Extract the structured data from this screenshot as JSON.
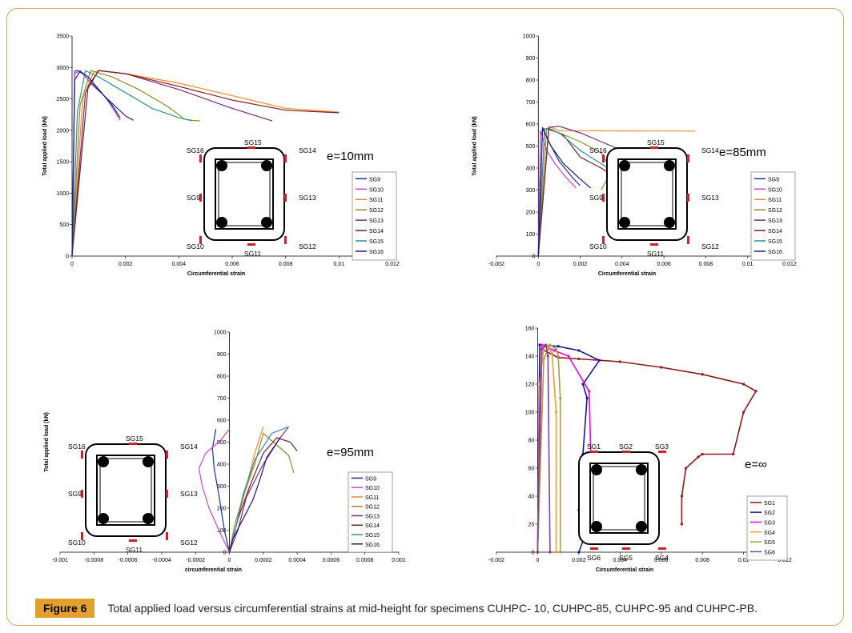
{
  "figure": {
    "label": "Figure 6",
    "caption": "Total applied load versus circumferential strains at mid-height for specimens CUHPC- 10, CUHPC-85, CUHPC-95 and CUHPC-PB."
  },
  "chart_data": [
    {
      "type": "line",
      "id": "CUHPC-10",
      "annotation": "e=10mm",
      "xlabel": "Circumferential strain",
      "ylabel": "Total applied load (kN)",
      "xlim": [
        0,
        0.012
      ],
      "ylim": [
        0,
        3500
      ],
      "x_ticks": [
        "0",
        "0.002",
        "0.004",
        "0.006",
        "0.008",
        "0.01",
        "0.012"
      ],
      "y_ticks": [
        "0",
        "500",
        "1000",
        "1500",
        "2000",
        "2500",
        "3000",
        "3500"
      ],
      "gauge_labels": [
        "SG15",
        "SG14",
        "SG16",
        "SG9",
        "SG13",
        "SG10",
        "SG11",
        "SG12"
      ],
      "series": [
        {
          "name": "SG9",
          "color": "#1f2f8f",
          "x": [
            0,
            0.0001,
            0.0002,
            0.0004,
            0.0007,
            0.0012,
            0.0017,
            0.002,
            0.0023
          ],
          "y": [
            0,
            2940,
            2950,
            2900,
            2750,
            2550,
            2350,
            2230,
            2160
          ]
        },
        {
          "name": "SG10",
          "color": "#cc44cc",
          "x": [
            0,
            0.0001,
            0.0003,
            0.0006,
            0.001,
            0.0013,
            0.0016,
            0.0018
          ],
          "y": [
            0,
            2900,
            2950,
            2800,
            2650,
            2500,
            2300,
            2160
          ]
        },
        {
          "name": "SG11",
          "color": "#f08c2c",
          "x": [
            0,
            0.0004,
            0.0008,
            0.001,
            0.002,
            0.004,
            0.006,
            0.008,
            0.01
          ],
          "y": [
            0,
            2500,
            2920,
            2950,
            2900,
            2750,
            2550,
            2350,
            2290
          ]
        },
        {
          "name": "SG12",
          "color": "#8f8f2a",
          "x": [
            0,
            0.0003,
            0.0007,
            0.0015,
            0.0025,
            0.0035,
            0.004,
            0.0042,
            0.0045,
            0.0048
          ],
          "y": [
            0,
            2400,
            2950,
            2850,
            2650,
            2400,
            2250,
            2180,
            2160,
            2150
          ]
        },
        {
          "name": "SG13",
          "color": "#7a2a7a",
          "x": [
            0,
            0.0005,
            0.001,
            0.002,
            0.004,
            0.006,
            0.0075
          ],
          "y": [
            0,
            2600,
            2950,
            2900,
            2650,
            2350,
            2150
          ]
        },
        {
          "name": "SG14",
          "color": "#7a1f1f",
          "x": [
            0,
            0.0006,
            0.001,
            0.002,
            0.004,
            0.006,
            0.008,
            0.01
          ],
          "y": [
            0,
            2700,
            2950,
            2900,
            2700,
            2480,
            2320,
            2280
          ]
        },
        {
          "name": "SG15",
          "color": "#2f8fa0",
          "x": [
            0,
            0.0002,
            0.0005,
            0.001,
            0.002,
            0.003,
            0.004,
            0.0045
          ],
          "y": [
            0,
            2300,
            2950,
            2850,
            2600,
            2350,
            2200,
            2150
          ]
        },
        {
          "name": "SG16",
          "color": "#1a1a7a",
          "x": [
            0,
            0.0001,
            0.0003,
            0.0006,
            0.001,
            0.0015,
            0.0018
          ],
          "y": [
            0,
            2800,
            2940,
            2850,
            2650,
            2400,
            2200
          ]
        }
      ]
    },
    {
      "type": "line",
      "id": "CUHPC-85",
      "annotation": "e=85mm",
      "xlabel": "Circumferential strain",
      "ylabel": "Total applied load (kN)",
      "xlim": [
        -0.002,
        0.012
      ],
      "ylim": [
        0,
        1000
      ],
      "x_ticks": [
        "-0.002",
        "0",
        "0.002",
        "0.004",
        "0.006",
        "0.008",
        "0.01",
        "0.012"
      ],
      "y_ticks": [
        "0",
        "100",
        "200",
        "300",
        "400",
        "500",
        "600",
        "700",
        "800",
        "900",
        "1000"
      ],
      "gauge_labels": [
        "SG15",
        "SG16",
        "SG14",
        "SG9",
        "SG13",
        "SG10",
        "SG11",
        "SG12"
      ],
      "series": [
        {
          "name": "SG9",
          "color": "#1f2f8f",
          "x": [
            0,
            0.0002,
            0.0005,
            0.001,
            0.0016,
            0.002
          ],
          "y": [
            0,
            580,
            520,
            430,
            360,
            320
          ]
        },
        {
          "name": "SG10",
          "color": "#cc44cc",
          "x": [
            0,
            0.0001,
            0.0004,
            0.0008,
            0.0013,
            0.0018
          ],
          "y": [
            0,
            570,
            480,
            420,
            360,
            310
          ]
        },
        {
          "name": "SG11",
          "color": "#f08c2c",
          "x": [
            0,
            0.0003,
            0.0006,
            0.001,
            0.0075
          ],
          "y": [
            0,
            575,
            585,
            570,
            568
          ]
        },
        {
          "name": "SG12",
          "color": "#8f8f2a",
          "x": [
            0,
            0.0004,
            0.001,
            0.002,
            0.003,
            0.0035,
            0.0038,
            0.003
          ],
          "y": [
            0,
            580,
            560,
            520,
            470,
            390,
            440,
            300
          ]
        },
        {
          "name": "SG13",
          "color": "#7a2a7a",
          "x": [
            0,
            0.0005,
            0.001,
            0.002,
            0.003,
            0.004
          ],
          "y": [
            0,
            585,
            590,
            560,
            520,
            480
          ]
        },
        {
          "name": "SG14",
          "color": "#7a1f1f",
          "x": [
            0,
            0.0005,
            0.0012,
            0.002,
            0.003,
            0.004
          ],
          "y": [
            0,
            580,
            550,
            450,
            400,
            340
          ]
        },
        {
          "name": "SG15",
          "color": "#2f8fa0",
          "x": [
            0,
            0.0003,
            0.001,
            0.002,
            0.003,
            0.004
          ],
          "y": [
            0,
            580,
            560,
            480,
            420,
            360
          ]
        },
        {
          "name": "SG16",
          "color": "#1a1a7a",
          "x": [
            0,
            0.0002,
            0.0006,
            0.0012,
            0.002,
            0.0025
          ],
          "y": [
            0,
            585,
            500,
            420,
            350,
            310
          ]
        }
      ]
    },
    {
      "type": "line",
      "id": "CUHPC-95",
      "annotation": "e=95mm",
      "xlabel": "circumferential strain",
      "ylabel": "Total applied load (kN)",
      "xlim": [
        -0.001,
        0.001
      ],
      "ylim": [
        0,
        1000
      ],
      "x_ticks": [
        "-0.001",
        "-0.0008",
        "-0.0006",
        "-0.0004",
        "-0.0002",
        "0",
        "0.0002",
        "0.0004",
        "0.0006",
        "0.0008",
        "0.001"
      ],
      "y_ticks": [
        "0",
        "100",
        "200",
        "300",
        "400",
        "500",
        "600",
        "700",
        "800",
        "900",
        "1000"
      ],
      "gauge_labels": [
        "SG15",
        "SG16",
        "SG14",
        "SG9",
        "SG13",
        "SG10",
        "SG11",
        "SG12"
      ],
      "series": [
        {
          "name": "SG9",
          "color": "#1f2f8f",
          "x": [
            0,
            -3e-05,
            -6e-05,
            -9e-05,
            -0.0001,
            -8e-05
          ],
          "y": [
            0,
            100,
            250,
            380,
            470,
            560
          ]
        },
        {
          "name": "SG10",
          "color": "#cc44cc",
          "x": [
            0,
            -5e-05,
            -0.00012,
            -0.00016,
            -0.00018,
            -0.00014,
            -5e-05,
            0
          ],
          "y": [
            0,
            80,
            200,
            300,
            380,
            450,
            510,
            560
          ]
        },
        {
          "name": "SG11",
          "color": "#f08c2c",
          "x": [
            0,
            5e-05,
            0.0001,
            0.00015,
            0.0002
          ],
          "y": [
            0,
            150,
            300,
            450,
            570
          ]
        },
        {
          "name": "SG12",
          "color": "#8f8f2a",
          "x": [
            0,
            3e-05,
            8e-05,
            0.00015,
            0.0002,
            0.00035,
            0.00038
          ],
          "y": [
            0,
            120,
            250,
            400,
            540,
            440,
            360
          ]
        },
        {
          "name": "SG13",
          "color": "#7a2a7a",
          "x": [
            0,
            5e-05,
            0.0001,
            0.0002,
            0.0003,
            0.00035
          ],
          "y": [
            0,
            100,
            250,
            400,
            520,
            570
          ]
        },
        {
          "name": "SG14",
          "color": "#7a1f1f",
          "x": [
            0,
            5e-05,
            0.00012,
            0.0002,
            0.00028,
            0.00036,
            0.0004
          ],
          "y": [
            0,
            150,
            300,
            450,
            520,
            500,
            460
          ]
        },
        {
          "name": "SG15",
          "color": "#2f8fa0",
          "x": [
            0,
            4e-05,
            8e-05,
            0.00015,
            0.00025,
            0.00035
          ],
          "y": [
            0,
            120,
            260,
            420,
            540,
            570
          ]
        },
        {
          "name": "SG16",
          "color": "#1a1a7a",
          "x": [
            0,
            2e-05,
            8e-05,
            0.00014,
            0.00018,
            0.00022,
            0.0003
          ],
          "y": [
            0,
            60,
            150,
            240,
            330,
            430,
            520
          ]
        }
      ]
    },
    {
      "type": "line",
      "id": "CUHPC-PB",
      "annotation": "e=∞",
      "xlabel": "Circumferential strain",
      "ylabel": "",
      "xlim": [
        -0.002,
        0.012
      ],
      "ylim": [
        0,
        160
      ],
      "x_ticks": [
        "-0.002",
        "0",
        "0.002",
        "0.004",
        "0.006",
        "0.008",
        "0.01",
        "0.012"
      ],
      "y_ticks": [
        "0",
        "20",
        "40",
        "60",
        "80",
        "100",
        "120",
        "140",
        "160"
      ],
      "gauge_labels": [
        "SG1",
        "SG2",
        "SG3",
        "SG6",
        "SG5",
        "SG4"
      ],
      "series": [
        {
          "name": "SG1",
          "color": "#8b1a1a",
          "x": [
            0,
            0.0002,
            0.001,
            0.002,
            0.004,
            0.006,
            0.008,
            0.01,
            0.0106,
            0.01,
            0.0095,
            0.008,
            0.0078,
            0.0072,
            0.007,
            0.007
          ],
          "y": [
            0,
            145,
            139,
            138,
            136,
            132,
            127,
            120,
            115,
            100,
            70,
            70,
            68,
            60,
            40,
            20
          ]
        },
        {
          "name": "SG2",
          "color": "#1a1a8f",
          "x": [
            0,
            0.0001,
            0.001,
            0.002,
            0.003,
            0.0022,
            0.0024,
            0.0022,
            0.002,
            0.0025,
            0.002
          ],
          "y": [
            0,
            148,
            147,
            144,
            137,
            120,
            110,
            70,
            30,
            20,
            0
          ]
        },
        {
          "name": "SG3",
          "color": "#ee00ee",
          "x": [
            0,
            0.0002,
            0.0008,
            0.0015,
            0.0025,
            0.0026,
            0.0025,
            0.0026,
            0.003,
            0.0033
          ],
          "y": [
            0,
            148,
            144,
            140,
            115,
            60,
            35,
            25,
            25,
            20
          ]
        },
        {
          "name": "SG4",
          "color": "#f0a020",
          "x": [
            0,
            0.0001,
            0.0003,
            0.0005,
            0.0007,
            0.0009,
            0.0009
          ],
          "y": [
            0,
            120,
            146,
            147,
            142,
            100,
            0
          ]
        },
        {
          "name": "SG5",
          "color": "#a0a040",
          "x": [
            0,
            0.0003,
            0.0006,
            0.0009,
            0.001,
            0.0011,
            0.0011
          ],
          "y": [
            0,
            138,
            148,
            145,
            140,
            110,
            0
          ]
        },
        {
          "name": "SG6",
          "color": "#8040a0",
          "x": [
            0,
            0.0001,
            0.0002,
            0.0004,
            0.0005,
            0.0006
          ],
          "y": [
            0,
            100,
            145,
            148,
            140,
            0
          ]
        }
      ]
    }
  ]
}
